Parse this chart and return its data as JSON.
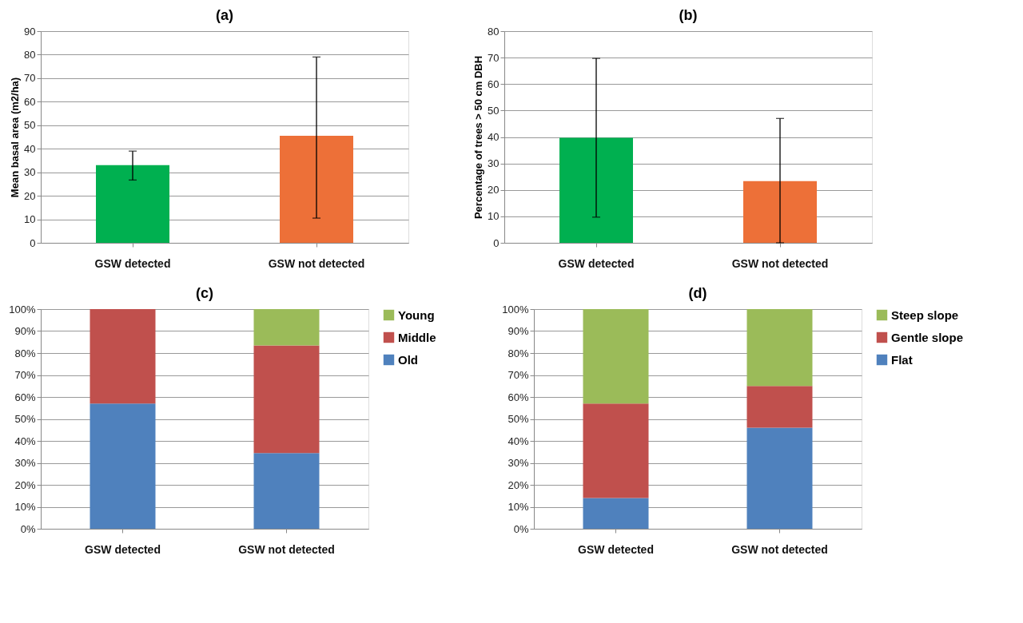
{
  "chart_data": [
    {
      "type": "bar",
      "title": "(a)",
      "ylabel": "Mean basal area (m2/ha)",
      "categories": [
        "GSW detected",
        "GSW not detected"
      ],
      "values": [
        33,
        45.5
      ],
      "colors": [
        "#00b050",
        "#ed7038"
      ],
      "errors": [
        [
          26.7,
          39
        ],
        [
          10.5,
          79
        ]
      ],
      "ylim": [
        0,
        90
      ],
      "yticks": [
        0,
        10,
        20,
        30,
        40,
        50,
        60,
        70,
        80,
        90
      ],
      "grid": "y",
      "legend": false
    },
    {
      "type": "bar",
      "title": "(b)",
      "ylabel": "Percentage of  trees > 50 cm DBH",
      "categories": [
        "GSW detected",
        "GSW not detected"
      ],
      "values": [
        39.7,
        23.3
      ],
      "colors": [
        "#00b050",
        "#ed7038"
      ],
      "errors": [
        [
          9.7,
          69.7
        ],
        [
          0,
          47
        ]
      ],
      "ylim": [
        0,
        80
      ],
      "yticks": [
        0,
        10,
        20,
        30,
        40,
        50,
        60,
        70,
        80
      ],
      "grid": "y",
      "legend": false
    },
    {
      "type": "bar",
      "title": "(c)",
      "stacked": true,
      "categories": [
        "GSW detected",
        "GSW not detected"
      ],
      "series": [
        {
          "name": "Old",
          "color": "#4f81bd",
          "values": [
            57,
            34.5
          ]
        },
        {
          "name": "Middle",
          "color": "#c0504d",
          "values": [
            43,
            49
          ]
        },
        {
          "name": "Young",
          "color": "#9bbb59",
          "values": [
            0,
            16.5
          ]
        }
      ],
      "ylim": [
        0,
        100
      ],
      "yticks": [
        {
          "value": 0,
          "label": "0%"
        },
        {
          "value": 10,
          "label": "10%"
        },
        {
          "value": 20,
          "label": "20%"
        },
        {
          "value": 30,
          "label": "30%"
        },
        {
          "value": 40,
          "label": "40%"
        },
        {
          "value": 50,
          "label": "50%"
        },
        {
          "value": 60,
          "label": "60%"
        },
        {
          "value": 70,
          "label": "70%"
        },
        {
          "value": 80,
          "label": "80%"
        },
        {
          "value": 90,
          "label": "90%"
        },
        {
          "value": 100,
          "label": "100%"
        }
      ],
      "grid": "y",
      "legend": "right"
    },
    {
      "type": "bar",
      "title": "(d)",
      "stacked": true,
      "categories": [
        "GSW detected",
        "GSW not detected"
      ],
      "series": [
        {
          "name": "Flat",
          "color": "#4f81bd",
          "values": [
            14,
            46
          ]
        },
        {
          "name": "Gentle slope",
          "color": "#c0504d",
          "values": [
            43,
            19
          ]
        },
        {
          "name": "Steep slope",
          "color": "#9bbb59",
          "values": [
            43,
            35
          ]
        }
      ],
      "ylim": [
        0,
        100
      ],
      "yticks": [
        {
          "value": 0,
          "label": "0%"
        },
        {
          "value": 10,
          "label": "10%"
        },
        {
          "value": 20,
          "label": "20%"
        },
        {
          "value": 30,
          "label": "30%"
        },
        {
          "value": 40,
          "label": "40%"
        },
        {
          "value": 50,
          "label": "50%"
        },
        {
          "value": 60,
          "label": "60%"
        },
        {
          "value": 70,
          "label": "70%"
        },
        {
          "value": 80,
          "label": "80%"
        },
        {
          "value": 90,
          "label": "90%"
        },
        {
          "value": 100,
          "label": "100%"
        }
      ],
      "grid": "y",
      "legend": "right"
    }
  ]
}
